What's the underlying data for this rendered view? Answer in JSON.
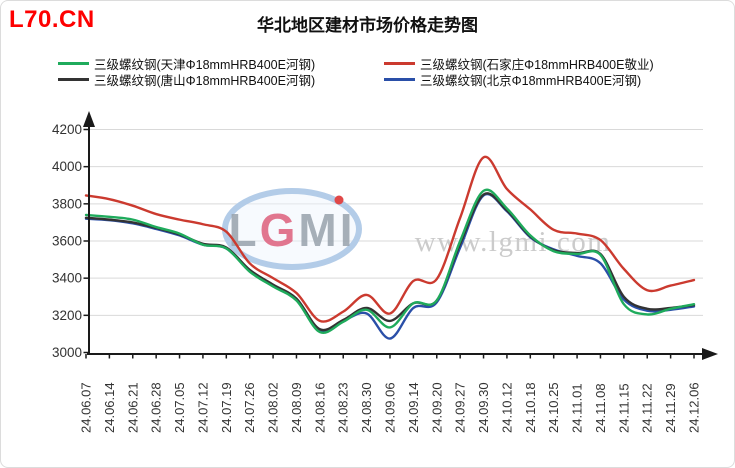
{
  "page": {
    "site_label": "L70.CN",
    "title": "华北地区建材市场价格走势图"
  },
  "watermark": {
    "logo_text": "LGMI",
    "url_text": "www.lgmi.com",
    "oval_color": "#b3cce8",
    "letter_color": "#98a2ac",
    "accent_letter_color": "#de5f7c",
    "dot_color": "#e04848",
    "url_color": "#cbcbcb"
  },
  "axis": {
    "label_color": "#333333",
    "axis_color": "#1a1a1a",
    "grid_color": "#d9d9d9"
  },
  "chart_data": {
    "type": "line",
    "title": "华北地区建材市场价格走势图",
    "xlabel": "",
    "ylabel": "",
    "ylim": [
      3000,
      4200
    ],
    "y_ticks": [
      3000,
      3200,
      3400,
      3600,
      3800,
      4000,
      4200
    ],
    "grid": "horizontal",
    "legend_position": "top",
    "x_labels": [
      "24.06.07",
      "24.06.14",
      "24.06.21",
      "24.06.28",
      "24.07.05",
      "24.07.12",
      "24.07.19",
      "24.07.26",
      "24.08.02",
      "24.08.09",
      "24.08.16",
      "24.08.23",
      "24.08.30",
      "24.09.06",
      "24.09.14",
      "24.09.20",
      "24.09.27",
      "24.09.30",
      "24.10.12",
      "24.10.18",
      "24.10.25",
      "24.11.01",
      "24.11.08",
      "24.11.15",
      "24.11.22",
      "24.11.29",
      "24.12.06"
    ],
    "series": [
      {
        "name": "三级螺纹钢(天津Φ18mmHRB400E河钢)",
        "color": "#1fab5c",
        "values": [
          3740,
          3730,
          3715,
          3675,
          3640,
          3580,
          3560,
          3435,
          3355,
          3280,
          3110,
          3165,
          3230,
          3135,
          3265,
          3280,
          3600,
          3870,
          3775,
          3630,
          3545,
          3530,
          3525,
          3260,
          3205,
          3235,
          3260
        ]
      },
      {
        "name": "三级螺纹钢(石家庄Φ18mmHRB400E敬业)",
        "color": "#cb3a2f",
        "values": [
          3845,
          3825,
          3790,
          3745,
          3715,
          3690,
          3650,
          3480,
          3400,
          3320,
          3170,
          3220,
          3310,
          3210,
          3385,
          3395,
          3725,
          4050,
          3880,
          3770,
          3660,
          3640,
          3605,
          3450,
          3335,
          3360,
          3390
        ]
      },
      {
        "name": "三级螺纹钢(唐山Φ18mmHRB400E河钢)",
        "color": "#333333",
        "values": [
          3725,
          3715,
          3700,
          3670,
          3635,
          3585,
          3565,
          3445,
          3365,
          3290,
          3125,
          3175,
          3240,
          3170,
          3265,
          3280,
          3585,
          3850,
          3765,
          3625,
          3550,
          3535,
          3530,
          3300,
          3235,
          3240,
          3255
        ]
      },
      {
        "name": "三级螺纹钢(北京Φ18mmHRB400E河钢)",
        "color": "#2a4fa8",
        "values": [
          3720,
          3712,
          3695,
          3665,
          3630,
          3580,
          3560,
          3440,
          3360,
          3285,
          3118,
          3170,
          3210,
          3075,
          3240,
          3270,
          3565,
          3845,
          3760,
          3620,
          3555,
          3520,
          3480,
          3285,
          3225,
          3230,
          3248
        ]
      }
    ]
  }
}
